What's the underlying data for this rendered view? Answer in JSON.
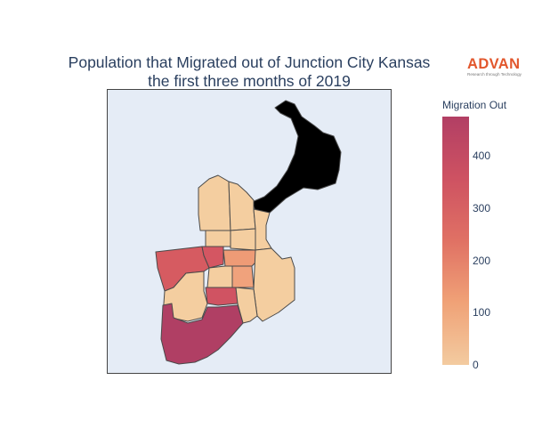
{
  "title": {
    "line1": "Population that Migrated out of Junction City Kansas",
    "line2": "the first three months of 2019"
  },
  "logo": {
    "brand": "ADVAN",
    "tagline": "Research through Technology",
    "color": "#e2572d"
  },
  "colorbar": {
    "title": "Migration Out",
    "min": 0,
    "max": 475,
    "ticks": [
      {
        "value": 0,
        "label": "0"
      },
      {
        "value": 100,
        "label": "100"
      },
      {
        "value": 200,
        "label": "200"
      },
      {
        "value": 300,
        "label": "300"
      },
      {
        "value": 400,
        "label": "400"
      }
    ],
    "colors": [
      "#f3cba0",
      "#f0a277",
      "#e07164",
      "#ce5262",
      "#b23f64"
    ]
  },
  "map": {
    "background": "#e5ecf6",
    "border_color": "#444444"
  }
}
